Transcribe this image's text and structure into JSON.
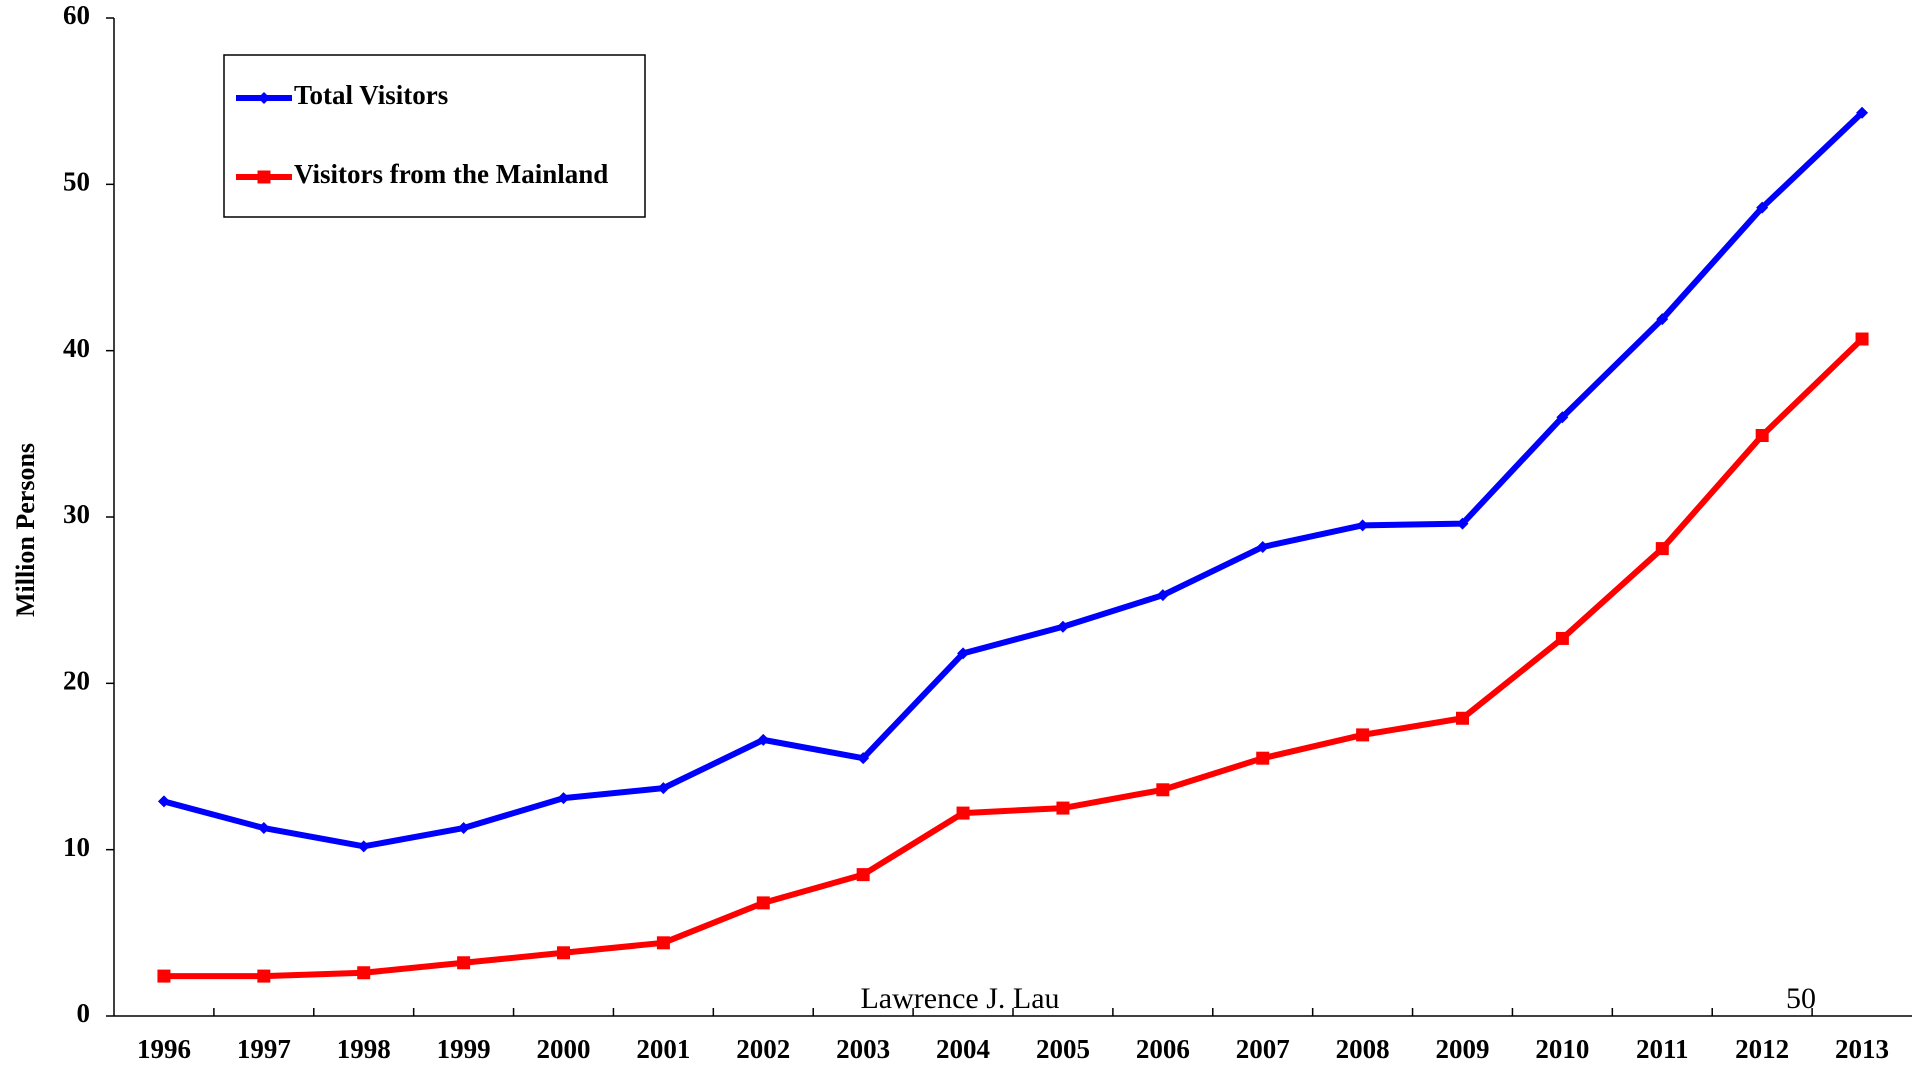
{
  "chart_data": {
    "type": "line",
    "y_label": "Million Persons",
    "categories": [
      "1996",
      "1997",
      "1998",
      "1999",
      "2000",
      "2001",
      "2002",
      "2003",
      "2004",
      "2005",
      "2006",
      "2007",
      "2008",
      "2009",
      "2010",
      "2011",
      "2012",
      "2013"
    ],
    "series": [
      {
        "name": "Total Visitors",
        "color": "#0000ff",
        "marker": "diamond",
        "values": [
          12.9,
          11.3,
          10.2,
          11.3,
          13.1,
          13.7,
          16.6,
          15.5,
          21.8,
          23.4,
          25.3,
          28.2,
          29.5,
          29.6,
          36.0,
          41.9,
          48.6,
          54.3
        ]
      },
      {
        "name": "Visitors from the Mainland",
        "color": "#ff0000",
        "marker": "square",
        "values": [
          2.4,
          2.4,
          2.6,
          3.2,
          3.8,
          4.4,
          6.8,
          8.5,
          12.2,
          12.5,
          13.6,
          15.5,
          16.9,
          17.9,
          22.7,
          28.1,
          34.9,
          40.7
        ]
      }
    ],
    "ylim": [
      0,
      60
    ],
    "yticks": [
      0,
      10,
      20,
      30,
      40,
      50,
      60
    ],
    "legend": "upper left",
    "annotations": [
      "Lawrence J. Lau",
      "50"
    ]
  }
}
